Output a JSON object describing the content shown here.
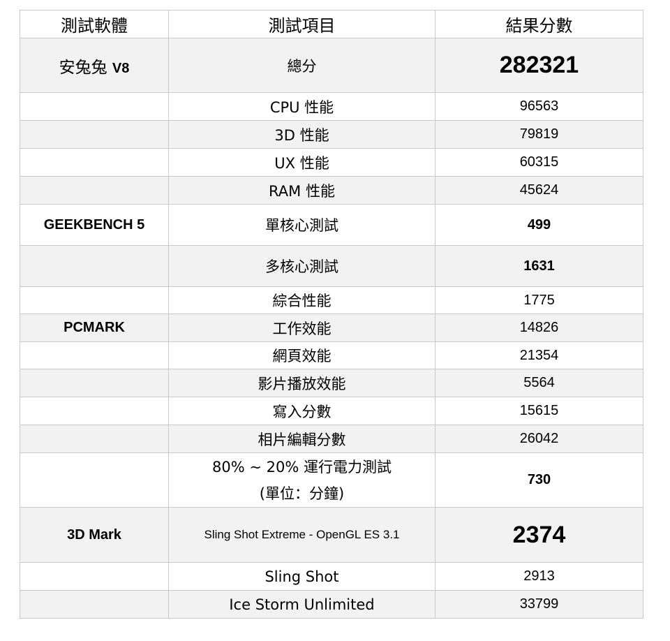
{
  "header": {
    "software": "測試軟體",
    "item": "測試項目",
    "result": "結果分數"
  },
  "rows": [
    {
      "software": "安兔兔 V8",
      "item": "總分",
      "result": "282321",
      "style": "big",
      "gray": true
    },
    {
      "software": "",
      "item": "CPU  性能",
      "result": "96563",
      "gray": false
    },
    {
      "software": "",
      "item": "3D  性能",
      "result": "79819",
      "gray": true
    },
    {
      "software": "",
      "item": "UX  性能",
      "result": "60315",
      "gray": false
    },
    {
      "software": "",
      "item": "RAM  性能",
      "result": "45624",
      "gray": true
    },
    {
      "software": "GEEKBENCH 5",
      "item": "單核心測試",
      "result": "499",
      "style": "bold",
      "gray": false
    },
    {
      "software": "",
      "item": "多核心測試",
      "result": "1631",
      "style": "bold",
      "gray": true
    },
    {
      "software": "",
      "item": "綜合性能",
      "result": "1775",
      "gray": false
    },
    {
      "software": "PCMARK",
      "item": "工作效能",
      "result": "14826",
      "gray": true
    },
    {
      "software": "",
      "item": "網頁效能",
      "result": "21354",
      "gray": false
    },
    {
      "software": "",
      "item": "影片播放效能",
      "result": "5564",
      "gray": true
    },
    {
      "software": "",
      "item": "寫入分數",
      "result": "15615",
      "gray": false
    },
    {
      "software": "",
      "item": "相片編輯分數",
      "result": "26042",
      "gray": true
    },
    {
      "software": "",
      "item": "80% ~ 20%  運行電力測試",
      "item2": "(單位：分鐘)",
      "result": "730",
      "style": "bold",
      "gray": false
    },
    {
      "software": "3D Mark",
      "item": "Sling Shot    Extreme - OpenGL ES 3.1",
      "result": "2374",
      "style": "big",
      "gray": true,
      "itemSmall": true
    },
    {
      "software": "",
      "item": "Sling Shot",
      "result": "2913",
      "gray": false
    },
    {
      "software": "",
      "item": "Ice Storm Unlimited",
      "result": "33799",
      "gray": true
    }
  ]
}
